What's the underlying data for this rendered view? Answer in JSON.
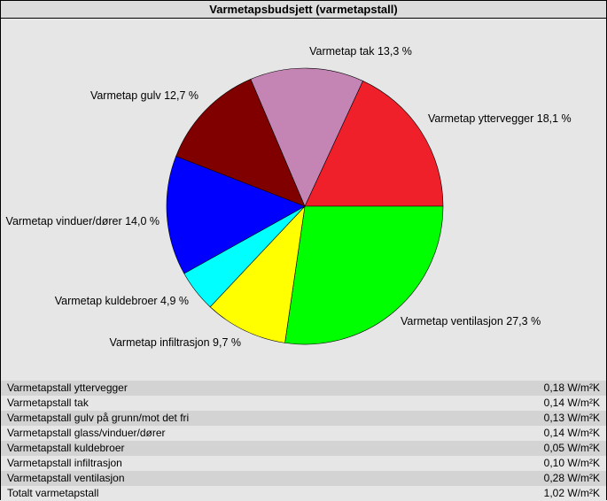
{
  "title": "Varmetapsbudsjett (varmetapstall)",
  "chart_data": {
    "type": "pie",
    "title": "Varmetapsbudsjett (varmetapstall)",
    "slices": [
      {
        "label": "Varmetap yttervegger 18,1 %",
        "value": 18.1,
        "color": "#f0202a"
      },
      {
        "label": "Varmetap ventilasjon 27,3 %",
        "value": 27.3,
        "color": "#00ff00"
      },
      {
        "label": "Varmetap infiltrasjon 9,7 %",
        "value": 9.7,
        "color": "#ffff00"
      },
      {
        "label": "Varmetap kuldebroer 4,9 %",
        "value": 4.9,
        "color": "#00ffff"
      },
      {
        "label": "Varmetap vinduer/dører 14,0 %",
        "value": 14.0,
        "color": "#0000ff"
      },
      {
        "label": "Varmetap gulv 12,7 %",
        "value": 12.7,
        "color": "#800000"
      },
      {
        "label": "Varmetap tak 13,3 %",
        "value": 13.3,
        "color": "#c484b4"
      }
    ]
  },
  "table": {
    "rows": [
      {
        "name": "Varmetapstall yttervegger",
        "value": "0,18 W/m²K"
      },
      {
        "name": "Varmetapstall tak",
        "value": "0,14 W/m²K"
      },
      {
        "name": "Varmetapstall gulv på grunn/mot det fri",
        "value": "0,13 W/m²K"
      },
      {
        "name": "Varmetapstall glass/vinduer/dører",
        "value": "0,14 W/m²K"
      },
      {
        "name": "Varmetapstall kuldebroer",
        "value": "0,05 W/m²K"
      },
      {
        "name": "Varmetapstall infiltrasjon",
        "value": "0,10 W/m²K"
      },
      {
        "name": "Varmetapstall ventilasjon",
        "value": "0,28 W/m²K"
      },
      {
        "name": "Totalt varmetapstall",
        "value": "1,02 W/m²K"
      }
    ]
  }
}
